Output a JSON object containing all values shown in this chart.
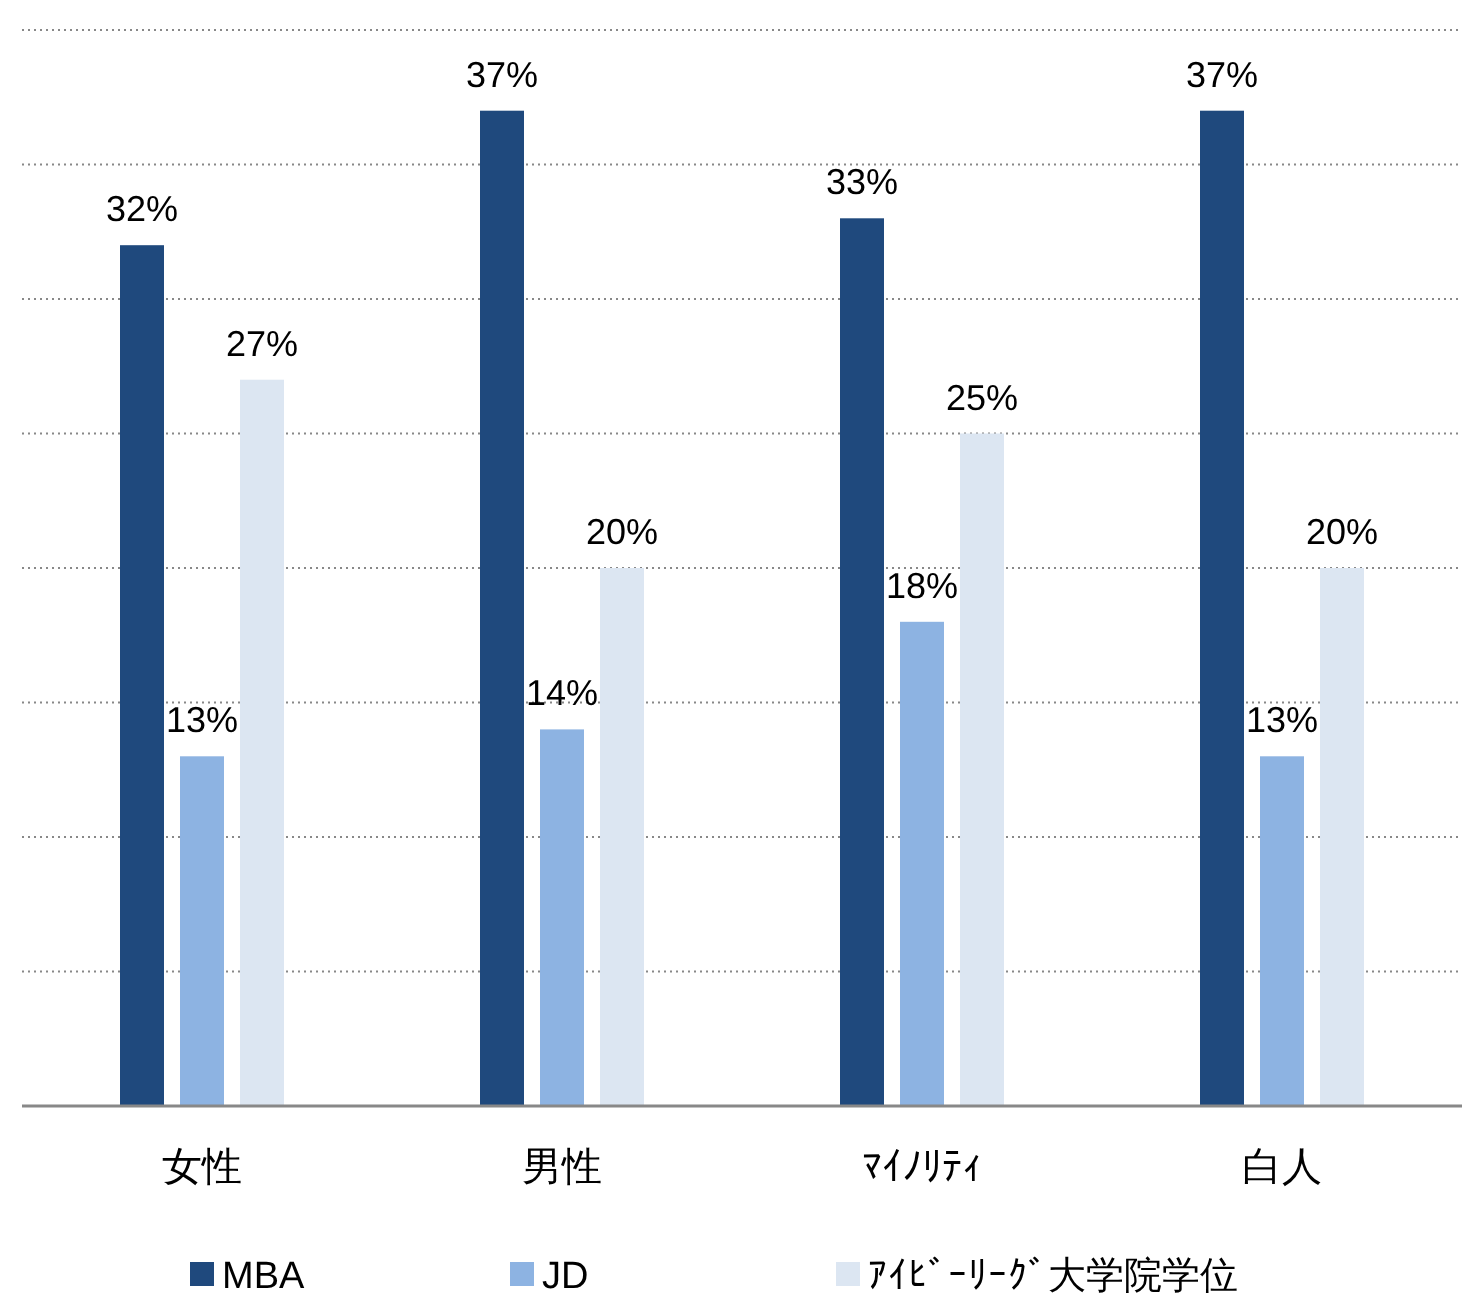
{
  "chart_data": {
    "type": "bar",
    "categories": [
      "女性",
      "男性",
      "ﾏｲﾉﾘﾃｨ",
      "白人"
    ],
    "series": [
      {
        "name": "MBA",
        "color": "#1f497d",
        "values": [
          32,
          37,
          33,
          37
        ],
        "value_labels": [
          "32%",
          "37%",
          "33%",
          "37%"
        ]
      },
      {
        "name": "JD",
        "color": "#8db3e2",
        "values": [
          13,
          14,
          18,
          13
        ],
        "value_labels": [
          "13%",
          "14%",
          "18%",
          "13%"
        ]
      },
      {
        "name": "ｱｲﾋﾞｰﾘｰｸﾞ大学院学位",
        "color": "#dce6f2",
        "values": [
          27,
          20,
          25,
          20
        ],
        "value_labels": [
          "27%",
          "20%",
          "25%",
          "20%"
        ]
      }
    ],
    "ylim": [
      0,
      40
    ],
    "yticks": [
      {
        "value": 0,
        "label": null
      },
      {
        "value": 5,
        "label": null
      },
      {
        "value": 10,
        "label": null
      },
      {
        "value": 15,
        "label": null
      },
      {
        "value": 20,
        "label": null
      },
      {
        "value": 25,
        "label": null
      },
      {
        "value": 30,
        "label": null
      },
      {
        "value": 35,
        "label": null
      },
      {
        "value": 40,
        "label": null
      }
    ],
    "grid": "y",
    "tick_labels": "x",
    "legend": "bottom"
  }
}
